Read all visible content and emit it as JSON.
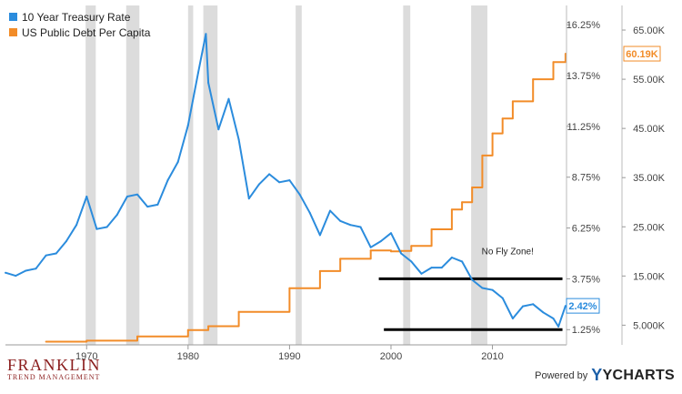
{
  "chart_data": {
    "type": "line",
    "title": "",
    "xlabel": "",
    "x_ticks": [
      "1970",
      "1980",
      "1990",
      "2000",
      "2010"
    ],
    "xlim": [
      1962,
      2017.3
    ],
    "left_axis": {
      "ticks": [
        "1.25%",
        "3.75%",
        "6.25%",
        "8.75%",
        "11.25%",
        "13.75%",
        "16.25%"
      ],
      "range": [
        0.5,
        17.2
      ]
    },
    "right_axis": {
      "ticks": [
        "5.000K",
        "15.00K",
        "25.00K",
        "35.00K",
        "45.00K",
        "55.00K",
        "65.00K"
      ],
      "range": [
        1000,
        70000
      ]
    },
    "legend": {
      "position": "top-left"
    },
    "grid": false,
    "recession_bands": [
      [
        1969.9,
        1970.9
      ],
      [
        1973.9,
        1975.2
      ],
      [
        1980.0,
        1980.5
      ],
      [
        1981.5,
        1982.9
      ],
      [
        1990.6,
        1991.2
      ],
      [
        2001.2,
        2001.9
      ],
      [
        2007.9,
        2009.5
      ]
    ],
    "series": [
      {
        "name": "10 Year Treasury Rate",
        "color": "#2b8cdd",
        "axis": "left",
        "last_value_label": "2.42%",
        "points": [
          [
            1962,
            4.05
          ],
          [
            1963,
            3.9
          ],
          [
            1964,
            4.15
          ],
          [
            1965,
            4.25
          ],
          [
            1966,
            4.9
          ],
          [
            1967,
            5.0
          ],
          [
            1968,
            5.6
          ],
          [
            1969,
            6.4
          ],
          [
            1970,
            7.8
          ],
          [
            1971,
            6.2
          ],
          [
            1972,
            6.3
          ],
          [
            1973,
            6.9
          ],
          [
            1974,
            7.8
          ],
          [
            1975,
            7.9
          ],
          [
            1976,
            7.3
          ],
          [
            1977,
            7.4
          ],
          [
            1978,
            8.6
          ],
          [
            1979,
            9.5
          ],
          [
            1980,
            11.3
          ],
          [
            1981,
            13.9
          ],
          [
            1981.75,
            15.8
          ],
          [
            1982,
            13.4
          ],
          [
            1983,
            11.1
          ],
          [
            1984,
            12.6
          ],
          [
            1985,
            10.6
          ],
          [
            1986,
            7.7
          ],
          [
            1987,
            8.4
          ],
          [
            1988,
            8.9
          ],
          [
            1989,
            8.5
          ],
          [
            1990,
            8.6
          ],
          [
            1991,
            7.9
          ],
          [
            1992,
            7.0
          ],
          [
            1993,
            5.9
          ],
          [
            1994,
            7.1
          ],
          [
            1995,
            6.6
          ],
          [
            1996,
            6.4
          ],
          [
            1997,
            6.3
          ],
          [
            1998,
            5.3
          ],
          [
            1999,
            5.6
          ],
          [
            2000,
            6.0
          ],
          [
            2001,
            5.0
          ],
          [
            2002,
            4.6
          ],
          [
            2003,
            4.0
          ],
          [
            2004,
            4.3
          ],
          [
            2005,
            4.3
          ],
          [
            2006,
            4.8
          ],
          [
            2007,
            4.6
          ],
          [
            2008,
            3.7
          ],
          [
            2009,
            3.3
          ],
          [
            2010,
            3.2
          ],
          [
            2011,
            2.8
          ],
          [
            2012,
            1.8
          ],
          [
            2013,
            2.4
          ],
          [
            2014,
            2.5
          ],
          [
            2015,
            2.1
          ],
          [
            2016,
            1.8
          ],
          [
            2016.5,
            1.4
          ],
          [
            2017.2,
            2.42
          ]
        ]
      },
      {
        "name": "US Public Debt Per Capita",
        "color": "#f28c28",
        "axis": "right",
        "last_value_label": "60.19K",
        "points": [
          [
            1966,
            1650
          ],
          [
            1970,
            1850
          ],
          [
            1975,
            2700
          ],
          [
            1980,
            4000
          ],
          [
            1982,
            4800
          ],
          [
            1985,
            7700
          ],
          [
            1990,
            12500
          ],
          [
            1993,
            16000
          ],
          [
            1995,
            18500
          ],
          [
            1998,
            20200
          ],
          [
            2000,
            20000
          ],
          [
            2001,
            20100
          ],
          [
            2002,
            21100
          ],
          [
            2004,
            24500
          ],
          [
            2006,
            28500
          ],
          [
            2007,
            30000
          ],
          [
            2008,
            33000
          ],
          [
            2009,
            39500
          ],
          [
            2010,
            44000
          ],
          [
            2011,
            47000
          ],
          [
            2012,
            50500
          ],
          [
            2014,
            55000
          ],
          [
            2016,
            58500
          ],
          [
            2017.2,
            60190
          ]
        ]
      }
    ],
    "annotations": [
      {
        "text": "No Fly Zone!",
        "x": 2011.5,
        "y": 4.95
      }
    ],
    "reference_lines": [
      {
        "axis": "left",
        "y": 3.75,
        "x_from": 1998.8,
        "x_to": 2016.9
      },
      {
        "axis": "left",
        "y": 1.25,
        "x_from": 1999.3,
        "x_to": 2016.9
      }
    ]
  },
  "branding": {
    "company_name": "FRANKLIN",
    "company_tagline": "TREND MANAGEMENT",
    "powered_by": "Powered by",
    "provider": "YCHARTS"
  }
}
